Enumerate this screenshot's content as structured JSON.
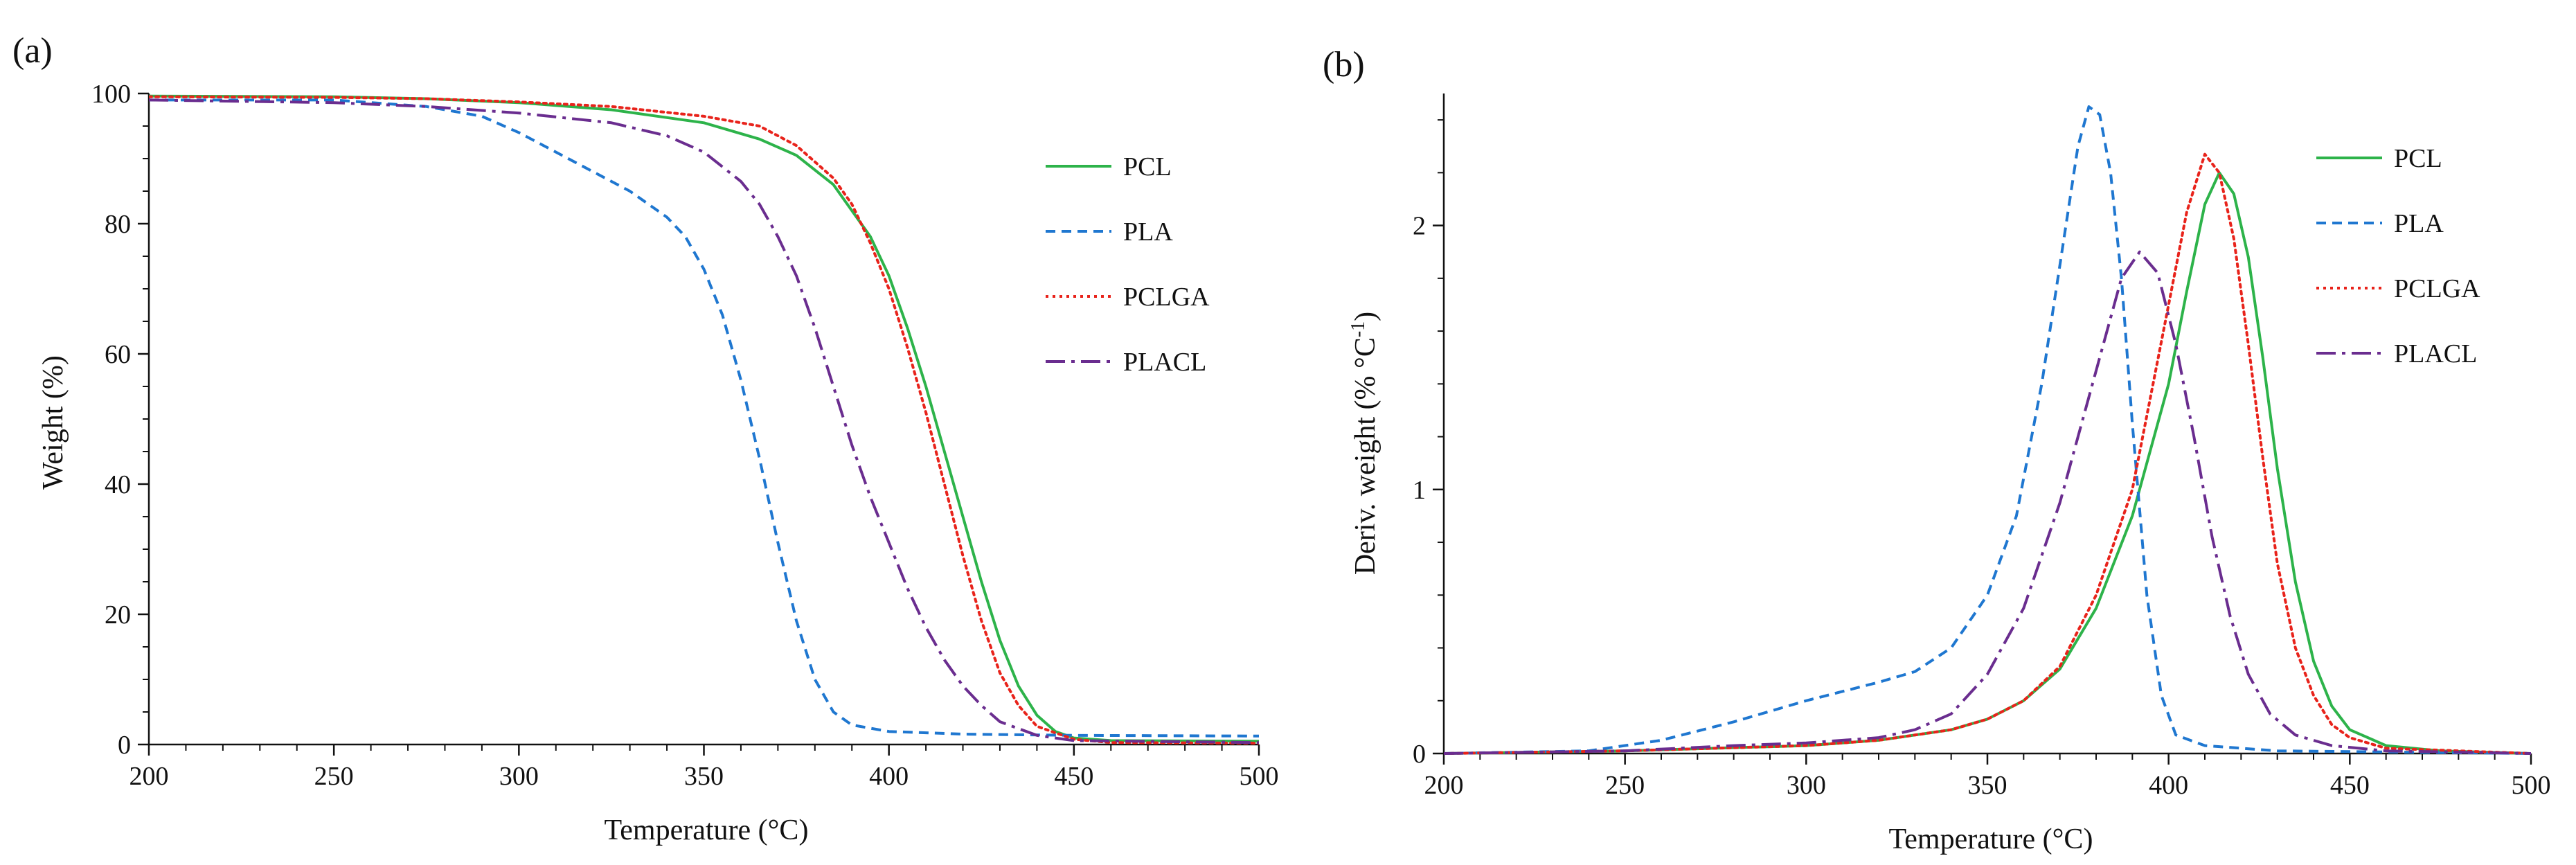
{
  "figure": {
    "panel_labels": [
      "(a)",
      "(b)"
    ]
  },
  "chart_data": [
    {
      "id": "a",
      "type": "line",
      "panel_label": "(a)",
      "title": "",
      "xlabel": "Temperature (°C)",
      "ylabel": "Weight (%)",
      "xlim": [
        200,
        500
      ],
      "ylim": [
        0,
        100
      ],
      "xticks": [
        200,
        250,
        300,
        350,
        400,
        450,
        500
      ],
      "yticks": [
        0,
        20,
        40,
        60,
        80,
        100
      ],
      "ytick_labels": [
        "0",
        "20",
        "40",
        "60",
        "80",
        "100"
      ],
      "grid": false,
      "legend_position": "right",
      "series": [
        {
          "name": "PCL",
          "color": "#2db34a",
          "dash": "solid",
          "points": [
            [
              200,
              99.6
            ],
            [
              250,
              99.5
            ],
            [
              275,
              99.2
            ],
            [
              300,
              98.6
            ],
            [
              325,
              97.5
            ],
            [
              350,
              95.5
            ],
            [
              365,
              93
            ],
            [
              375,
              90.5
            ],
            [
              385,
              86
            ],
            [
              395,
              78
            ],
            [
              400,
              72
            ],
            [
              405,
              64
            ],
            [
              410,
              55
            ],
            [
              415,
              45
            ],
            [
              420,
              35
            ],
            [
              425,
              25
            ],
            [
              430,
              16
            ],
            [
              435,
              9
            ],
            [
              440,
              4.5
            ],
            [
              445,
              2
            ],
            [
              450,
              1
            ],
            [
              460,
              0.6
            ],
            [
              500,
              0.5
            ]
          ]
        },
        {
          "name": "PLA",
          "color": "#1f77d0",
          "dash": "14 9",
          "points": [
            [
              200,
              99
            ],
            [
              250,
              99
            ],
            [
              275,
              98
            ],
            [
              290,
              96.5
            ],
            [
              300,
              94
            ],
            [
              310,
              91
            ],
            [
              320,
              88
            ],
            [
              330,
              85
            ],
            [
              340,
              81
            ],
            [
              345,
              78
            ],
            [
              350,
              73
            ],
            [
              355,
              66
            ],
            [
              360,
              56
            ],
            [
              365,
              44
            ],
            [
              370,
              31
            ],
            [
              375,
              19
            ],
            [
              380,
              10
            ],
            [
              385,
              5
            ],
            [
              390,
              3
            ],
            [
              400,
              2
            ],
            [
              420,
              1.6
            ],
            [
              450,
              1.4
            ],
            [
              500,
              1.3
            ]
          ]
        },
        {
          "name": "PCLGA",
          "color": "#e8231b",
          "dash": "4 6",
          "points": [
            [
              200,
              99.5
            ],
            [
              250,
              99.4
            ],
            [
              275,
              99.2
            ],
            [
              300,
              98.7
            ],
            [
              325,
              98
            ],
            [
              350,
              96.5
            ],
            [
              365,
              95
            ],
            [
              375,
              92
            ],
            [
              385,
              87
            ],
            [
              390,
              83
            ],
            [
              395,
              77
            ],
            [
              400,
              70
            ],
            [
              405,
              61
            ],
            [
              410,
              51
            ],
            [
              415,
              40
            ],
            [
              420,
              29
            ],
            [
              425,
              19
            ],
            [
              430,
              11
            ],
            [
              435,
              6
            ],
            [
              440,
              2.8
            ],
            [
              450,
              0.8
            ],
            [
              460,
              0.3
            ],
            [
              500,
              0.2
            ]
          ]
        },
        {
          "name": "PLACL",
          "color": "#6a2d8f",
          "dash": "28 9 5 9",
          "points": [
            [
              200,
              99
            ],
            [
              250,
              98.6
            ],
            [
              275,
              98
            ],
            [
              300,
              97
            ],
            [
              325,
              95.5
            ],
            [
              340,
              93.5
            ],
            [
              350,
              91
            ],
            [
              360,
              86.5
            ],
            [
              365,
              83
            ],
            [
              370,
              78
            ],
            [
              375,
              72
            ],
            [
              380,
              64
            ],
            [
              385,
              55
            ],
            [
              390,
              46
            ],
            [
              395,
              38
            ],
            [
              400,
              31
            ],
            [
              405,
              24
            ],
            [
              410,
              18
            ],
            [
              415,
              13
            ],
            [
              420,
              9
            ],
            [
              425,
              6
            ],
            [
              430,
              3.5
            ],
            [
              440,
              1.4
            ],
            [
              450,
              0.6
            ],
            [
              500,
              0.3
            ]
          ]
        }
      ]
    },
    {
      "id": "b",
      "type": "line",
      "panel_label": "(b)",
      "title": "",
      "xlabel": "Temperature (°C)",
      "ylabel": "Deriv. weight (% °C",
      "ylabel_sup": "-1",
      "ylabel_end": ")",
      "xlim": [
        200,
        500
      ],
      "ylim": [
        0,
        2.5
      ],
      "xticks": [
        200,
        250,
        300,
        350,
        400,
        450,
        500
      ],
      "yticks": [
        0,
        1,
        2
      ],
      "ytick_labels": [
        "0",
        "1",
        "2"
      ],
      "grid": false,
      "legend_position": "top-right",
      "series": [
        {
          "name": "PCL",
          "color": "#2db34a",
          "dash": "solid",
          "points": [
            [
              200,
              0
            ],
            [
              250,
              0.01
            ],
            [
              300,
              0.03
            ],
            [
              320,
              0.05
            ],
            [
              340,
              0.09
            ],
            [
              350,
              0.13
            ],
            [
              360,
              0.2
            ],
            [
              370,
              0.32
            ],
            [
              380,
              0.55
            ],
            [
              390,
              0.9
            ],
            [
              400,
              1.4
            ],
            [
              405,
              1.75
            ],
            [
              410,
              2.08
            ],
            [
              414,
              2.2
            ],
            [
              418,
              2.12
            ],
            [
              422,
              1.88
            ],
            [
              426,
              1.5
            ],
            [
              430,
              1.08
            ],
            [
              435,
              0.65
            ],
            [
              440,
              0.35
            ],
            [
              445,
              0.18
            ],
            [
              450,
              0.09
            ],
            [
              460,
              0.03
            ],
            [
              475,
              0.01
            ],
            [
              500,
              0
            ]
          ]
        },
        {
          "name": "PLA",
          "color": "#1f77d0",
          "dash": "14 9",
          "points": [
            [
              200,
              0
            ],
            [
              240,
              0.01
            ],
            [
              260,
              0.05
            ],
            [
              280,
              0.12
            ],
            [
              300,
              0.2
            ],
            [
              320,
              0.27
            ],
            [
              330,
              0.31
            ],
            [
              340,
              0.4
            ],
            [
              350,
              0.6
            ],
            [
              358,
              0.9
            ],
            [
              365,
              1.4
            ],
            [
              370,
              1.85
            ],
            [
              375,
              2.3
            ],
            [
              378,
              2.45
            ],
            [
              381,
              2.42
            ],
            [
              384,
              2.2
            ],
            [
              387,
              1.8
            ],
            [
              390,
              1.25
            ],
            [
              394,
              0.6
            ],
            [
              398,
              0.22
            ],
            [
              402,
              0.07
            ],
            [
              410,
              0.03
            ],
            [
              430,
              0.01
            ],
            [
              500,
              0
            ]
          ]
        },
        {
          "name": "PCLGA",
          "color": "#e8231b",
          "dash": "4 6",
          "points": [
            [
              200,
              0
            ],
            [
              250,
              0.01
            ],
            [
              300,
              0.03
            ],
            [
              320,
              0.05
            ],
            [
              340,
              0.09
            ],
            [
              350,
              0.13
            ],
            [
              360,
              0.2
            ],
            [
              370,
              0.33
            ],
            [
              380,
              0.6
            ],
            [
              390,
              1.0
            ],
            [
              395,
              1.35
            ],
            [
              400,
              1.7
            ],
            [
              405,
              2.05
            ],
            [
              410,
              2.27
            ],
            [
              414,
              2.2
            ],
            [
              418,
              1.95
            ],
            [
              422,
              1.55
            ],
            [
              426,
              1.12
            ],
            [
              430,
              0.72
            ],
            [
              435,
              0.4
            ],
            [
              440,
              0.22
            ],
            [
              445,
              0.11
            ],
            [
              450,
              0.06
            ],
            [
              460,
              0.02
            ],
            [
              500,
              0
            ]
          ]
        },
        {
          "name": "PLACL",
          "color": "#6a2d8f",
          "dash": "28 9 5 9",
          "points": [
            [
              200,
              0
            ],
            [
              250,
              0.01
            ],
            [
              280,
              0.03
            ],
            [
              300,
              0.04
            ],
            [
              320,
              0.06
            ],
            [
              330,
              0.09
            ],
            [
              340,
              0.15
            ],
            [
              350,
              0.3
            ],
            [
              360,
              0.55
            ],
            [
              370,
              0.95
            ],
            [
              380,
              1.45
            ],
            [
              387,
              1.8
            ],
            [
              392,
              1.9
            ],
            [
              397,
              1.82
            ],
            [
              402,
              1.55
            ],
            [
              407,
              1.2
            ],
            [
              412,
              0.82
            ],
            [
              417,
              0.52
            ],
            [
              422,
              0.3
            ],
            [
              428,
              0.15
            ],
            [
              435,
              0.07
            ],
            [
              445,
              0.03
            ],
            [
              460,
              0.01
            ],
            [
              500,
              0
            ]
          ]
        }
      ]
    }
  ]
}
